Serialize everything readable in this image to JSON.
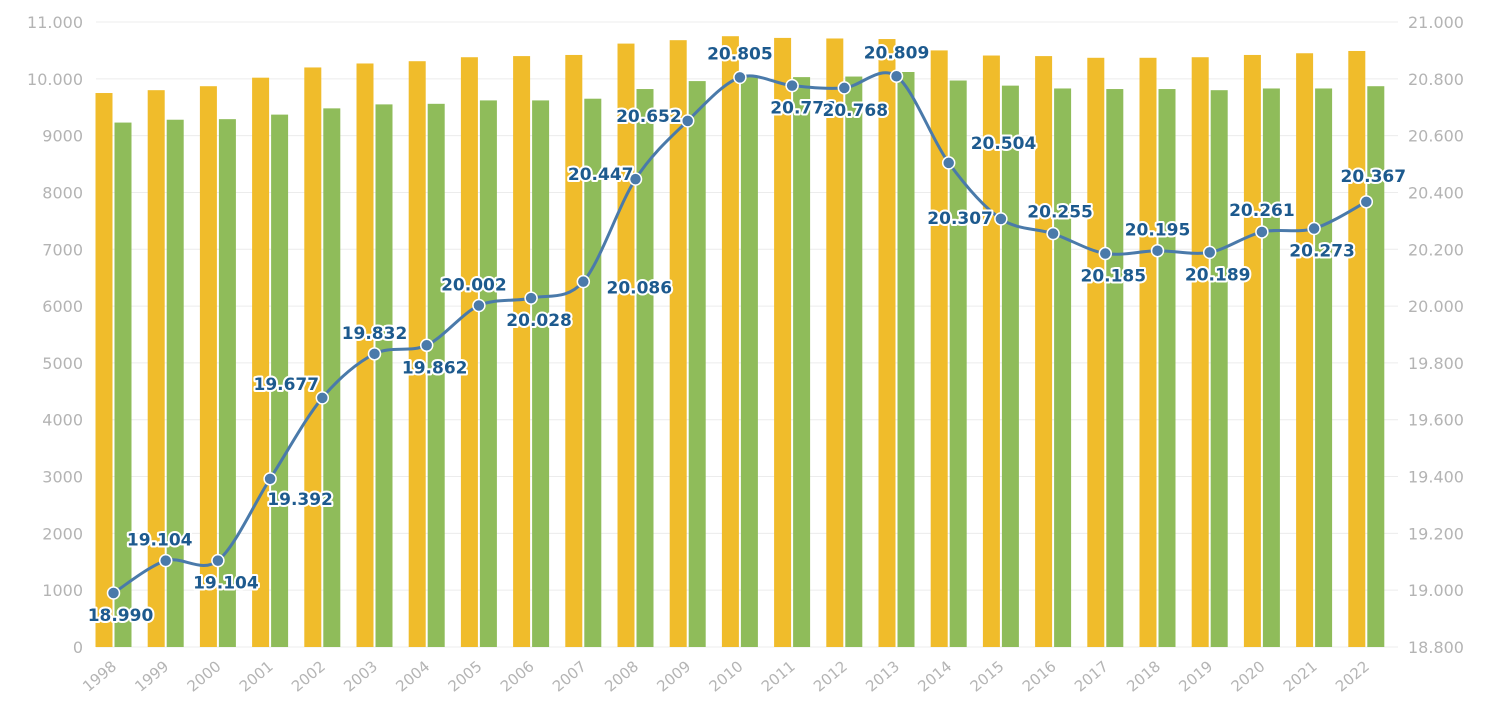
{
  "chart_data": {
    "type": "bar",
    "title": "",
    "xlabel": "",
    "ylabel": "",
    "categories": [
      "1998",
      "1999",
      "2000",
      "2001",
      "2002",
      "2003",
      "2004",
      "2005",
      "2006",
      "2007",
      "2008",
      "2009",
      "2010",
      "2011",
      "2012",
      "2013",
      "2014",
      "2015",
      "2016",
      "2017",
      "2018",
      "2019",
      "2020",
      "2021",
      "2022"
    ],
    "left_axis": {
      "range": [
        0,
        11000
      ],
      "ticks": [
        0,
        1000,
        2000,
        3000,
        4000,
        5000,
        6000,
        7000,
        8000,
        9000,
        10000,
        11000
      ],
      "tick_labels": [
        "0",
        "1000",
        "2000",
        "3000",
        "4000",
        "5000",
        "6000",
        "7000",
        "8000",
        "9000",
        "10.000",
        "11.000"
      ]
    },
    "right_axis": {
      "range": [
        18800,
        21000
      ],
      "ticks": [
        18800,
        19000,
        19200,
        19400,
        19600,
        19800,
        20000,
        20200,
        20400,
        20600,
        20800,
        21000
      ],
      "tick_labels": [
        "18.800",
        "19.000",
        "19.200",
        "19.400",
        "19.600",
        "19.800",
        "20.000",
        "20.200",
        "20.400",
        "20.600",
        "20.800",
        "21.000"
      ]
    },
    "grid": true,
    "series": [
      {
        "type": "bar",
        "axis": "left",
        "color": "#f0bc2b",
        "values": [
          9750,
          9800,
          9870,
          10020,
          10200,
          10270,
          10310,
          10380,
          10400,
          10420,
          10620,
          10680,
          10750,
          10720,
          10710,
          10700,
          10500,
          10410,
          10400,
          10370,
          10370,
          10380,
          10420,
          10450,
          10490
        ]
      },
      {
        "type": "bar",
        "axis": "left",
        "color": "#8fbc5a",
        "values": [
          9230,
          9280,
          9290,
          9370,
          9480,
          9550,
          9560,
          9620,
          9620,
          9650,
          9820,
          9960,
          10030,
          10030,
          10040,
          10120,
          9970,
          9880,
          9830,
          9820,
          9820,
          9800,
          9830,
          9830,
          9870
        ]
      },
      {
        "type": "line",
        "axis": "right",
        "color": "#4a7aaa",
        "values": [
          18990,
          19104,
          19104,
          19392,
          19677,
          19832,
          19862,
          20002,
          20028,
          20086,
          20447,
          20652,
          20805,
          20776,
          20768,
          20809,
          20504,
          20307,
          20255,
          20185,
          20195,
          20189,
          20261,
          20273,
          20367
        ],
        "labels": [
          "18.990",
          "19.104",
          "19.104",
          "19.392",
          "19.677",
          "19.832",
          "19.862",
          "20.002",
          "20.028",
          "20.086",
          "20.447",
          "20.652",
          "20.805",
          "20.776",
          "20.768",
          "20.809",
          "20.504",
          "20.307",
          "20.255",
          "20.185",
          "20.195",
          "20.189",
          "20.261",
          "20.273",
          "20.367"
        ]
      }
    ]
  },
  "colors": {
    "grid": "#ececec",
    "axis_text": "#b4b4b4",
    "point_label": "#1d5a8e"
  }
}
